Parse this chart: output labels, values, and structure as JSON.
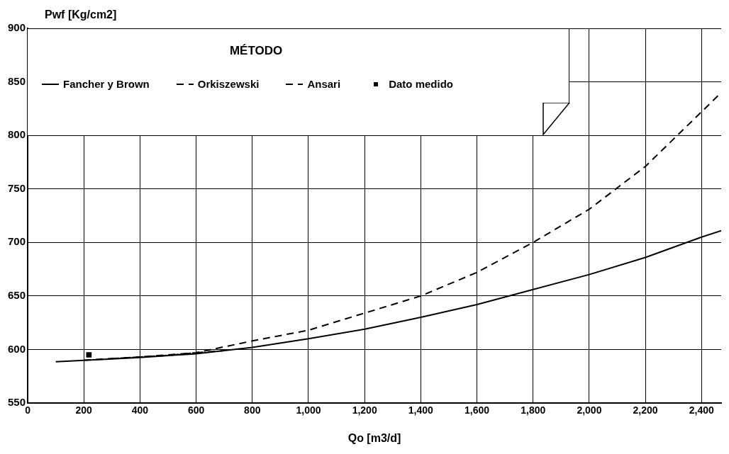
{
  "chart_data": {
    "type": "line",
    "xlabel": "Qo [m3/d]",
    "ylabel": "Pwf [Kg/cm2]",
    "legend_title": "MÉTODO",
    "xlim": [
      0,
      2470
    ],
    "xticks": [
      0,
      {
        "value": 200,
        "label": "200"
      },
      {
        "value": 400,
        "label": "400"
      },
      {
        "value": 600,
        "label": "600"
      },
      {
        "value": 800,
        "label": "800"
      },
      {
        "value": 1000,
        "label": "1,000"
      },
      {
        "value": 1200,
        "label": "1,200"
      },
      {
        "value": 1400,
        "label": "1,400"
      },
      {
        "value": 1600,
        "label": "1,600"
      },
      {
        "value": 1800,
        "label": "1,800"
      },
      {
        "value": 2000,
        "label": "2,000"
      },
      {
        "value": 2200,
        "label": "2,200"
      },
      {
        "value": 2400,
        "label": "2,400"
      }
    ],
    "ylim": [
      550,
      900
    ],
    "yticks": [
      550,
      600,
      650,
      700,
      750,
      800,
      850,
      900
    ],
    "grid": true,
    "legend": "top left",
    "series": [
      {
        "name": "Fancher y Brown",
        "line_style": "solid",
        "color": "#000000",
        "x": [
          100,
          400,
          600,
          800,
          1000,
          1200,
          1400,
          1600,
          1800,
          2000,
          2200,
          2400,
          2470
        ],
        "values": [
          588.5,
          592.5,
          596,
          602,
          610,
          619,
          630,
          642,
          656,
          670,
          686,
          705,
          711
        ]
      },
      {
        "name": "Orkiszewski",
        "line_style": "dashed",
        "color": "#000000",
        "x": [
          200,
          400,
          600,
          800,
          1000,
          1200,
          1400,
          1600,
          1800,
          2000,
          2200,
          2400,
          2470
        ],
        "values": [
          590,
          593,
          597,
          608,
          618,
          634,
          650,
          672,
          700,
          731,
          771,
          822,
          840
        ]
      },
      {
        "name": "Ansari",
        "line_style": "dashed",
        "color": "#000000",
        "x": [
          300,
          400,
          500,
          600,
          700
        ],
        "values": [
          591.5,
          593,
          594.5,
          597,
          599
        ]
      },
      {
        "name": "Dato medido",
        "type": "scatter",
        "marker": "square",
        "color": "#000000",
        "x": [
          218
        ],
        "values": [
          595
        ]
      }
    ]
  }
}
